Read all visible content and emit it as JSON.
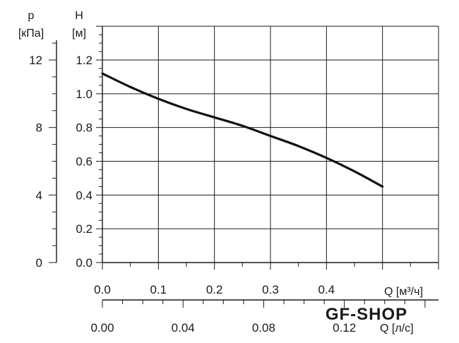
{
  "chart_data": {
    "type": "line",
    "left_axis_outer": {
      "label_line1": "p",
      "label_line2": "[кПа]",
      "ticks": [
        "12",
        "8",
        "4",
        "0"
      ],
      "tick_values": [
        12,
        8,
        4,
        0
      ],
      "range": [
        0,
        12
      ]
    },
    "left_axis_inner": {
      "label_line1": "H",
      "label_line2": "[м]",
      "ticks": [
        "1.2",
        "1.0",
        "0.8",
        "0.6",
        "0.4",
        "0.2",
        "0.0"
      ],
      "tick_values": [
        1.2,
        1.0,
        0.8,
        0.6,
        0.4,
        0.2,
        0.0
      ],
      "range": [
        0,
        1.2
      ]
    },
    "bottom_axis_1": {
      "label": "Q [м³/ч]",
      "ticks": [
        "0.0",
        "0.1",
        "0.2",
        "0.3",
        "0.4"
      ],
      "tick_values": [
        0.0,
        0.1,
        0.2,
        0.3,
        0.4
      ],
      "range": [
        0,
        0.6
      ]
    },
    "bottom_axis_2": {
      "label": "Q [л/с]",
      "ticks": [
        "0.00",
        "0.04",
        "0.08",
        "0.12"
      ],
      "tick_values": [
        0.0,
        0.04,
        0.08,
        0.12
      ],
      "range": [
        0,
        0.1667
      ]
    },
    "grid": true,
    "series": [
      {
        "x": [
          0.0,
          0.05,
          0.1,
          0.15,
          0.2,
          0.25,
          0.3,
          0.35,
          0.4,
          0.45,
          0.5
        ],
        "y": [
          1.12,
          1.04,
          0.97,
          0.91,
          0.86,
          0.81,
          0.75,
          0.69,
          0.62,
          0.54,
          0.45
        ]
      }
    ]
  },
  "watermark": "GF-SHOP",
  "colors": {
    "line": "#111111",
    "grid": "#1a1a1a",
    "watermark": "#c9d7ea"
  }
}
